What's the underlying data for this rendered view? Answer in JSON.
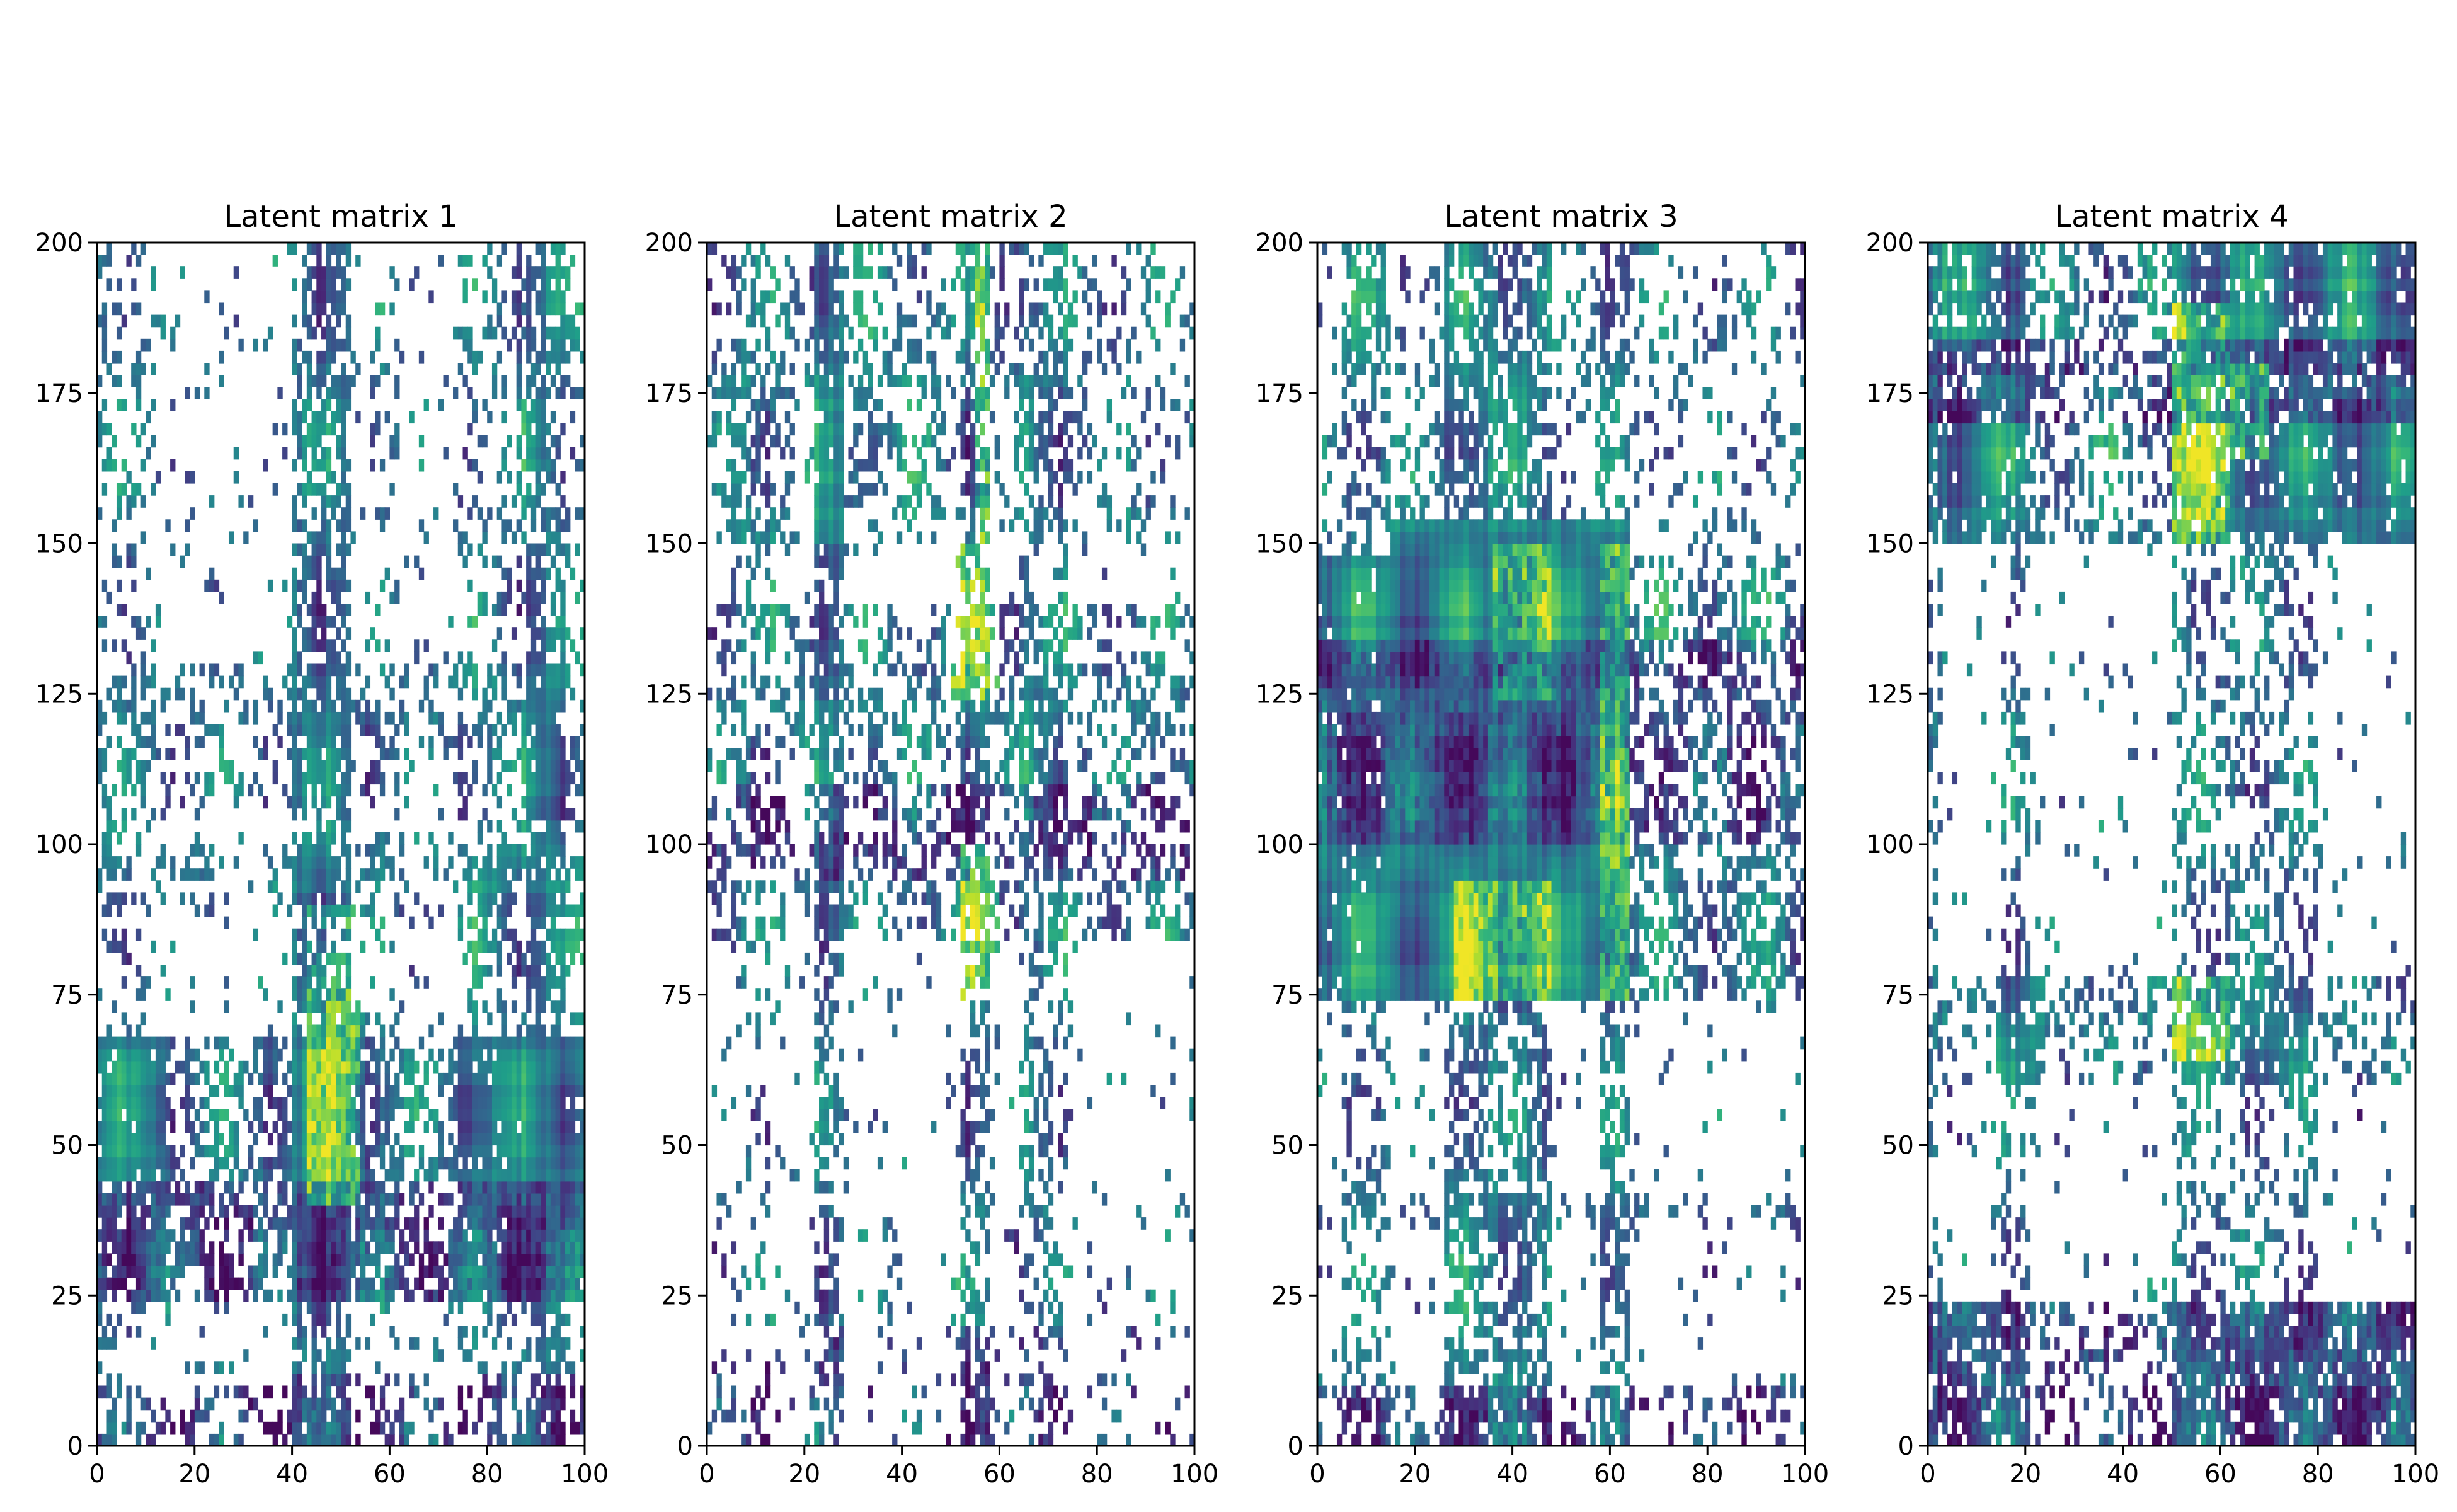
{
  "chart_data": [
    {
      "type": "heatmap",
      "title": "Latent matrix 1",
      "xlim": [
        0,
        100
      ],
      "ylim": [
        0,
        200
      ],
      "xticks": [
        "0",
        "20",
        "40",
        "60",
        "80",
        "100"
      ],
      "yticks": [
        "0",
        "25",
        "50",
        "75",
        "100",
        "125",
        "150",
        "175",
        "200"
      ],
      "cmap": "viridis",
      "value_range": [
        0,
        1
      ],
      "seed": 11,
      "base_density": 0.07,
      "col_bands": [
        [
          40,
          52,
          0.55
        ],
        [
          88,
          96,
          0.4
        ],
        [
          0,
          12,
          0.15
        ],
        [
          74,
          100,
          0.2
        ],
        [
          56,
          62,
          0.15
        ]
      ],
      "row_bands": [
        [
          25,
          68,
          0.45
        ],
        [
          0,
          4,
          0.25
        ],
        [
          88,
          100,
          0.15
        ],
        [
          108,
          130,
          0.2
        ],
        [
          5,
          10,
          0.15
        ]
      ],
      "blocks": [
        [
          0,
          14,
          25,
          68,
          0.9
        ],
        [
          74,
          100,
          25,
          68,
          0.95
        ],
        [
          40,
          55,
          25,
          75,
          0.85
        ],
        [
          58,
          66,
          25,
          60,
          0.5
        ],
        [
          74,
          100,
          108,
          130,
          0.5
        ],
        [
          86,
          96,
          150,
          200,
          0.55
        ],
        [
          74,
          100,
          78,
          100,
          0.55
        ]
      ],
      "hot": [
        [
          43,
          54,
          40,
          90
        ]
      ],
      "dark_rows": [
        [
          25,
          45
        ],
        [
          0,
          12
        ]
      ]
    },
    {
      "type": "heatmap",
      "title": "Latent matrix 2",
      "xlim": [
        0,
        100
      ],
      "ylim": [
        0,
        200
      ],
      "xticks": [
        "0",
        "20",
        "40",
        "60",
        "80",
        "100"
      ],
      "yticks": [
        "0",
        "25",
        "50",
        "75",
        "100",
        "125",
        "150",
        "175",
        "200"
      ],
      "cmap": "viridis",
      "value_range": [
        0,
        1
      ],
      "seed": 23,
      "base_density": 0.05,
      "col_bands": [
        [
          22,
          28,
          0.45
        ],
        [
          52,
          58,
          0.45
        ],
        [
          64,
          74,
          0.3
        ],
        [
          5,
          13,
          0.12
        ]
      ],
      "row_bands": [
        [
          85,
          140,
          0.3
        ],
        [
          150,
          200,
          0.18
        ],
        [
          0,
          12,
          0.08
        ]
      ],
      "blocks": [
        [
          22,
          28,
          150,
          200,
          0.85
        ],
        [
          4,
          14,
          150,
          185,
          0.6
        ],
        [
          64,
          74,
          85,
          140,
          0.6
        ],
        [
          52,
          58,
          85,
          140,
          0.6
        ],
        [
          30,
          48,
          155,
          190,
          0.35
        ]
      ],
      "hot": [
        [
          52,
          60,
          75,
          100
        ],
        [
          50,
          60,
          125,
          150
        ],
        [
          55,
          58,
          150,
          200
        ]
      ],
      "dark_rows": [
        [
          95,
          110
        ],
        [
          0,
          20
        ]
      ]
    },
    {
      "type": "heatmap",
      "title": "Latent matrix 3",
      "xlim": [
        0,
        100
      ],
      "ylim": [
        0,
        200
      ],
      "xticks": [
        "0",
        "20",
        "40",
        "60",
        "80",
        "100"
      ],
      "yticks": [
        "0",
        "25",
        "50",
        "75",
        "100",
        "125",
        "150",
        "175",
        "200"
      ],
      "cmap": "viridis",
      "value_range": [
        0,
        1
      ],
      "seed": 37,
      "base_density": 0.05,
      "col_bands": [
        [
          26,
          48,
          0.5
        ],
        [
          58,
          64,
          0.4
        ],
        [
          5,
          15,
          0.2
        ]
      ],
      "row_bands": [
        [
          75,
          148,
          0.45
        ],
        [
          0,
          10,
          0.3
        ],
        [
          36,
          42,
          0.25
        ],
        [
          150,
          200,
          0.15
        ]
      ],
      "blocks": [
        [
          0,
          15,
          75,
          148,
          0.95
        ],
        [
          15,
          64,
          75,
          155,
          1.0
        ],
        [
          64,
          100,
          95,
          148,
          0.45
        ],
        [
          28,
          48,
          160,
          200,
          0.65
        ],
        [
          5,
          14,
          180,
          200,
          0.6
        ],
        [
          26,
          48,
          0,
          55,
          0.45
        ],
        [
          5,
          14,
          0,
          20,
          0.5
        ],
        [
          58,
          64,
          0,
          55,
          0.35
        ]
      ],
      "hot": [
        [
          58,
          64,
          75,
          150
        ],
        [
          28,
          48,
          75,
          95
        ],
        [
          36,
          48,
          125,
          150
        ]
      ],
      "dark_rows": [
        [
          100,
          135
        ],
        [
          0,
          10
        ]
      ]
    },
    {
      "type": "heatmap",
      "title": "Latent matrix 4",
      "xlim": [
        0,
        100
      ],
      "ylim": [
        0,
        200
      ],
      "xticks": [
        "0",
        "20",
        "40",
        "60",
        "80",
        "100"
      ],
      "yticks": [
        "0",
        "25",
        "50",
        "75",
        "100",
        "125",
        "150",
        "175",
        "200"
      ],
      "cmap": "viridis",
      "value_range": [
        0,
        1
      ],
      "seed": 53,
      "base_density": 0.04,
      "col_bands": [
        [
          50,
          80,
          0.3
        ],
        [
          15,
          21,
          0.3
        ],
        [
          0,
          3,
          0.2
        ]
      ],
      "row_bands": [
        [
          150,
          200,
          0.35
        ],
        [
          60,
          78,
          0.25
        ],
        [
          0,
          25,
          0.3
        ]
      ],
      "blocks": [
        [
          0,
          20,
          150,
          200,
          0.85
        ],
        [
          50,
          100,
          150,
          200,
          0.9
        ],
        [
          50,
          100,
          0,
          25,
          0.85
        ],
        [
          0,
          20,
          0,
          25,
          0.75
        ],
        [
          14,
          24,
          60,
          78,
          0.75
        ],
        [
          50,
          78,
          60,
          78,
          0.75
        ],
        [
          24,
          46,
          150,
          185,
          0.35
        ]
      ],
      "hot": [
        [
          50,
          62,
          150,
          190
        ],
        [
          50,
          62,
          65,
          78
        ],
        [
          62,
          70,
          165,
          180
        ]
      ],
      "dark_rows": [
        [
          0,
          25
        ],
        [
          170,
          185
        ]
      ]
    }
  ]
}
